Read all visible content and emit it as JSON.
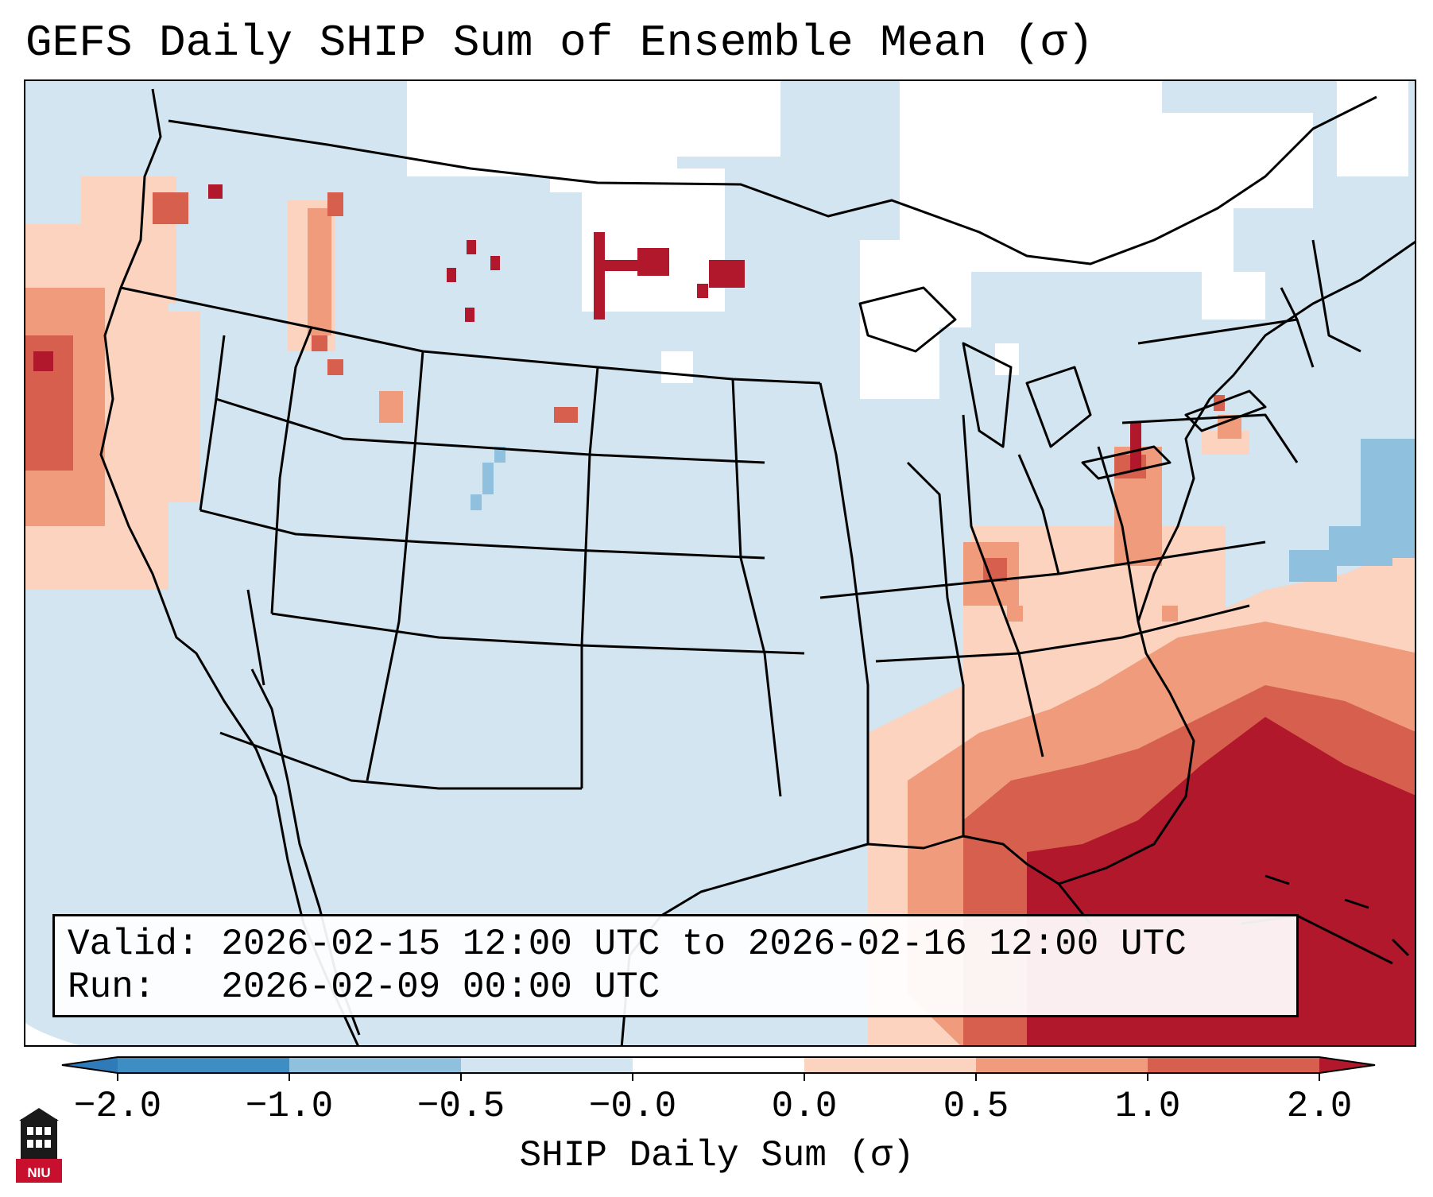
{
  "title": "GEFS Daily SHIP Sum of Ensemble Mean (σ)",
  "info": {
    "valid_line": "Valid: 2026-02-15 12:00 UTC to 2026-02-16 12:00 UTC",
    "run_line": "Run:   2026-02-09 00:00 UTC"
  },
  "colorbar": {
    "label": "SHIP Daily Sum (σ)",
    "ticks": [
      "−2.0",
      "−1.0",
      "−0.5",
      "−0.0",
      "0.0",
      "0.5",
      "1.0",
      "2.0"
    ],
    "colors": [
      "#2f7ab8",
      "#3e8ec4",
      "#8fc1de",
      "#d2e5f1",
      "#ffffff",
      "#fbd3bf",
      "#ef9b7c",
      "#d6604d",
      "#b2182b"
    ]
  },
  "map": {
    "region": "Contiguous United States and adjacent oceans",
    "background_color": "#d2e5f1"
  },
  "logo": {
    "text": "NIU"
  }
}
